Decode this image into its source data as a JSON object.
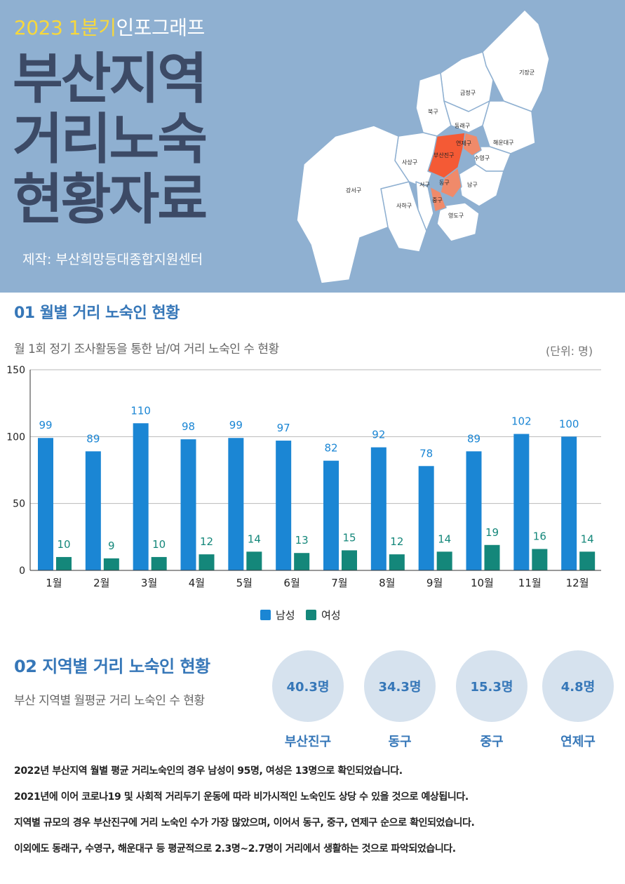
{
  "header": {
    "kicker_accent": "2023 1분기",
    "kicker_rest": "인포그래프",
    "title_lines": [
      "부산지역",
      "거리노숙",
      "현황자료"
    ],
    "maker": "제작: 부산희망등대종합지원센터"
  },
  "map": {
    "districts": [
      "기장군",
      "금정구",
      "북구",
      "동래구",
      "해운대구",
      "연제구",
      "부산진구",
      "수영구",
      "사상구",
      "강서구",
      "서구",
      "동구",
      "남구",
      "중구",
      "사하구",
      "영도구"
    ],
    "highlight_color": "#f45a35",
    "secondary_color": "#f08a6a"
  },
  "section1": {
    "title": "01 월별 거리 노숙인 현황",
    "subtitle": "월 1회 정기 조사활동을 통한 남/여 거리 노숙인 수 현황",
    "unit": "(단위: 명)"
  },
  "chart_data": {
    "type": "bar",
    "categories": [
      "1월",
      "2월",
      "3월",
      "4월",
      "5월",
      "6월",
      "7월",
      "8월",
      "9월",
      "10월",
      "11월",
      "12월"
    ],
    "series": [
      {
        "name": "남성",
        "values": [
          99,
          89,
          110,
          98,
          99,
          97,
          82,
          92,
          78,
          89,
          102,
          100
        ],
        "color": "#1b86d4"
      },
      {
        "name": "여성",
        "values": [
          10,
          9,
          10,
          12,
          14,
          13,
          15,
          12,
          14,
          19,
          16,
          14
        ],
        "color": "#14877a"
      }
    ],
    "ylim": [
      0,
      150
    ],
    "yticks": [
      0,
      50,
      100,
      150
    ],
    "grid": true,
    "legend": "bottom-center",
    "label_color": "#1b86d4",
    "label_color_2": "#14877a"
  },
  "section2": {
    "title": "02 지역별 거리 노숙인 현황",
    "subtitle": "부산 지역별 월평균 거리 노숙인 수 현황",
    "regions": [
      {
        "value": "40.3명",
        "name": "부산진구"
      },
      {
        "value": "34.3명",
        "name": "동구"
      },
      {
        "value": "15.3명",
        "name": "중구"
      },
      {
        "value": "4.8명",
        "name": "연제구"
      }
    ]
  },
  "summary": [
    "2022년 부산지역 월별 평균 거리노숙인의 경우 남성이 95명, 여성은 13명으로 확인되었습니다.",
    "2021년에 이어 코로나19 및 사회적 거리두기 운동에 따라 비가시적인 노숙인도 상당 수 있을 것으로 예상됩니다.",
    "지역별 규모의 경우 부산진구에 거리 노숙인 수가 가장 많았으며, 이어서 동구, 중구, 연제구 순으로 확인되었습니다.",
    "이외에도 동래구, 수영구, 해운대구 등 평균적으로 2.3명~2.7명이 거리에서 생활하는 것으로 파악되었습니다."
  ]
}
